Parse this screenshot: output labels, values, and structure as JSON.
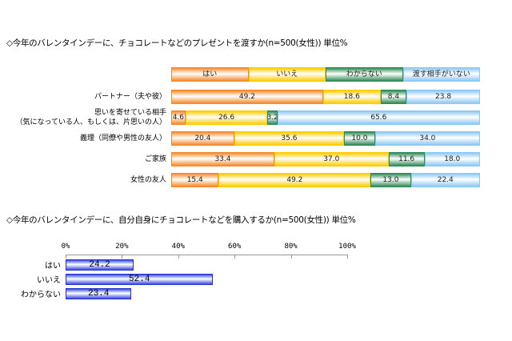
{
  "chart_data": [
    {
      "type": "bar",
      "stacked": true,
      "orientation": "horizontal",
      "title": "◇今年のバレンタインデーに、チョコレートなどのプレゼントを渡すか(n=500(女性)) 単位%",
      "legend": [
        "はい",
        "いいえ",
        "わからない",
        "渡す相手がいない"
      ],
      "legend_position": "top",
      "colors": [
        "#f58a2a",
        "#ffcc00",
        "#2e8b57",
        "#8cc8f5"
      ],
      "categories": [
        "パートナー（夫や彼）",
        "思いを寄せている相手\n（気になっている人、もしくは、片思いの人）",
        "義理（同僚や男性の友人）",
        "ご家族",
        "女性の友人"
      ],
      "series": [
        {
          "name": "はい",
          "values": [
            49.2,
            4.6,
            20.4,
            33.4,
            15.4
          ]
        },
        {
          "name": "いいえ",
          "values": [
            18.6,
            26.6,
            35.6,
            37.0,
            49.2
          ]
        },
        {
          "name": "わからない",
          "values": [
            8.4,
            3.2,
            10.0,
            11.6,
            13.0
          ]
        },
        {
          "name": "渡す相手がいない",
          "values": [
            23.8,
            65.6,
            34.0,
            18.0,
            22.4
          ]
        }
      ]
    },
    {
      "type": "bar",
      "orientation": "horizontal",
      "title": "◇今年のバレンタインデーに、自分自身にチョコレートなどを購入するか(n=500(女性)) 単位%",
      "categories": [
        "はい",
        "いいえ",
        "わからない"
      ],
      "values": [
        24.2,
        52.4,
        23.4
      ],
      "xlim": [
        0,
        100
      ],
      "ticks": [
        "0%",
        "20%",
        "40%",
        "60%",
        "80%",
        "100%"
      ],
      "color": "#3a4ee0"
    }
  ]
}
